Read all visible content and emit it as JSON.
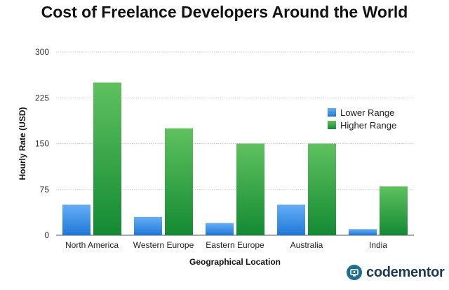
{
  "chart_data": {
    "type": "bar",
    "title": "Cost of Freelance Developers Around the World",
    "xlabel": "Geographical Location",
    "ylabel": "Hourly Rate (USD)",
    "categories": [
      "North America",
      "Western Europe",
      "Eastern Europe",
      "Australia",
      "India"
    ],
    "series": [
      {
        "name": "Lower Range",
        "values": [
          50,
          30,
          20,
          50,
          10
        ],
        "color": "#3a8ee6"
      },
      {
        "name": "Higher Range",
        "values": [
          250,
          175,
          150,
          150,
          80
        ],
        "color": "#1f9a3a"
      }
    ],
    "ylim": [
      0,
      300
    ],
    "yticks": [
      0,
      75,
      150,
      225,
      300
    ],
    "grid": true,
    "legend_position": "right"
  },
  "brand": {
    "name": "codementor",
    "icon": "codementor-logo-icon"
  }
}
